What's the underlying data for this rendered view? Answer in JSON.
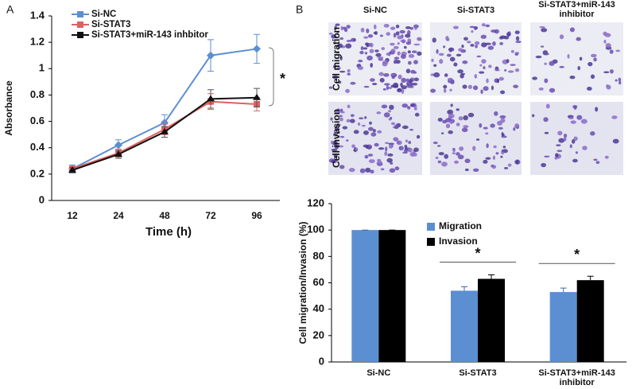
{
  "panel_labels": [
    "A",
    "B"
  ],
  "micrographs": {
    "columns": [
      "Si-NC",
      "Si-STAT3",
      "Si-STAT3+miR-143 inhibitor"
    ],
    "rows": [
      "Cell migration",
      "Cell invasion"
    ]
  },
  "chart_data": [
    {
      "type": "line",
      "x_label": "Time (h)",
      "y_label": "Absorbance",
      "categories": [
        "12",
        "24",
        "48",
        "72",
        "96"
      ],
      "ylim": [
        0,
        1.4
      ],
      "yticks": [
        0,
        0.2,
        0.4,
        0.6,
        0.8,
        1,
        1.2,
        1.4
      ],
      "series": [
        {
          "name": "Si-NC",
          "color": "#5b8fd1",
          "marker": "diamond",
          "values": [
            0.24,
            0.42,
            0.59,
            1.1,
            1.15
          ],
          "errors": [
            0.03,
            0.04,
            0.06,
            0.12,
            0.11
          ]
        },
        {
          "name": "Si-STAT3",
          "color": "#e06060",
          "marker": "square",
          "values": [
            0.24,
            0.36,
            0.54,
            0.75,
            0.73
          ],
          "errors": [
            0.02,
            0.03,
            0.04,
            0.06,
            0.05
          ]
        },
        {
          "name": "Si-STAT3+miR-143 inhbitor",
          "color": "#111111",
          "marker": "triangle",
          "values": [
            0.23,
            0.35,
            0.52,
            0.77,
            0.78
          ],
          "errors": [
            0.02,
            0.03,
            0.04,
            0.07,
            0.07
          ]
        }
      ],
      "annotations": [
        "*"
      ],
      "legend": "top-left"
    },
    {
      "type": "bar",
      "y_label": "Cell migration/Invasion (%)",
      "categories": [
        "Si-NC",
        "Si-STAT3",
        "Si-STAT3+miR-143 inhibitor"
      ],
      "ylim": [
        0,
        120
      ],
      "yticks": [
        0,
        20,
        40,
        60,
        80,
        100,
        120
      ],
      "series": [
        {
          "name": "Migration",
          "color": "#5b8fd1",
          "values": [
            100,
            54,
            53
          ],
          "errors": [
            0,
            3,
            3
          ]
        },
        {
          "name": "Invasion",
          "color": "#000000",
          "values": [
            100,
            63,
            62
          ],
          "errors": [
            0,
            3,
            3
          ]
        }
      ],
      "annotations": [
        "*",
        "*"
      ],
      "legend": "top-center"
    }
  ]
}
